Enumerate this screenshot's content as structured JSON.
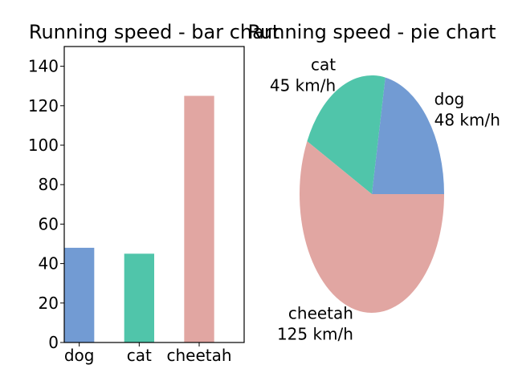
{
  "chart_data": [
    {
      "type": "bar",
      "title": "Running speed - bar chart",
      "xlabel": "",
      "ylabel": "",
      "categories": [
        "dog",
        "cat",
        "cheetah"
      ],
      "values": [
        48,
        45,
        125
      ],
      "colors": [
        "#729bd3",
        "#50c5aa",
        "#e1a6a2"
      ],
      "ylim": [
        0,
        150
      ],
      "yticks": [
        0,
        20,
        40,
        60,
        80,
        100,
        120,
        140
      ],
      "ytick_labels": [
        "0",
        "20",
        "40",
        "60",
        "80",
        "100",
        "120",
        "140"
      ],
      "grid": false
    },
    {
      "type": "pie",
      "title": "Running speed - pie chart",
      "labels": [
        "dog\n48 km/h",
        "cat\n45 km/h",
        "cheetah\n125 km/h"
      ],
      "values": [
        48,
        45,
        125
      ],
      "colors": [
        "#729bd3",
        "#50c5aa",
        "#e1a6a2"
      ]
    }
  ]
}
